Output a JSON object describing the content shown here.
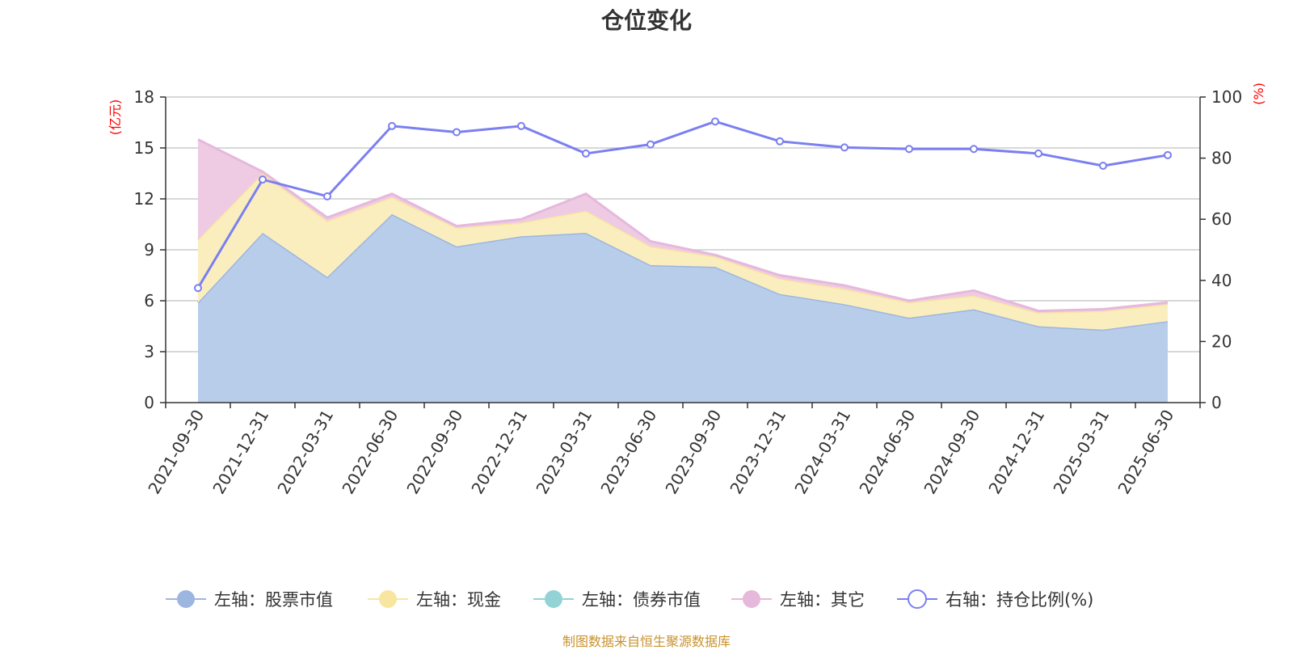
{
  "title": "仓位变化",
  "source": "制图数据来自恒生聚源数据库",
  "chart_data": {
    "type": "area",
    "left_axis": {
      "unit": "(亿元)",
      "range": [
        0,
        18
      ],
      "ticks": [
        "0",
        "3",
        "6",
        "9",
        "12",
        "15",
        "18"
      ]
    },
    "right_axis": {
      "unit": "(%)",
      "range": [
        0,
        100
      ],
      "ticks": [
        "0",
        "20",
        "40",
        "60",
        "80",
        "100"
      ]
    },
    "categories": [
      "2021-09-30",
      "2021-12-31",
      "2022-03-31",
      "2022-06-30",
      "2022-09-30",
      "2022-12-31",
      "2023-03-31",
      "2023-06-30",
      "2023-09-30",
      "2023-12-31",
      "2024-03-31",
      "2024-06-30",
      "2024-09-30",
      "2024-12-31",
      "2025-03-31",
      "2025-06-30"
    ],
    "series": [
      {
        "name": "左轴：股票市值",
        "axis": "left",
        "kind": "stacked-area",
        "color": "#9db6e0",
        "fill": "#b8cdea",
        "values": [
          5.9,
          10.0,
          7.4,
          11.1,
          9.2,
          9.8,
          10.0,
          8.1,
          8.0,
          6.4,
          5.8,
          5.0,
          5.5,
          4.5,
          4.3,
          4.8
        ]
      },
      {
        "name": "左轴：现金",
        "axis": "left",
        "kind": "stacked-area",
        "color": "#f8e6a0",
        "fill": "#faeebf",
        "values": [
          3.7,
          3.5,
          3.3,
          1.0,
          1.1,
          0.8,
          1.3,
          1.1,
          0.6,
          0.9,
          0.9,
          0.9,
          0.8,
          0.8,
          1.1,
          1.0
        ]
      },
      {
        "name": "左轴：债券市值",
        "axis": "left",
        "kind": "stacked-area",
        "color": "#93d3d6",
        "fill": "#93d3d6",
        "values": [
          0,
          0,
          0,
          0,
          0,
          0,
          0,
          0,
          0,
          0,
          0,
          0,
          0,
          0,
          0,
          0
        ]
      },
      {
        "name": "左轴：其它",
        "axis": "left",
        "kind": "stacked-area",
        "color": "#e6b8dc",
        "fill": "#eecbe3",
        "values": [
          5.9,
          0.1,
          0.2,
          0.2,
          0.1,
          0.2,
          1.0,
          0.3,
          0.1,
          0.2,
          0.2,
          0.1,
          0.3,
          0.1,
          0.1,
          0.1
        ]
      },
      {
        "name": "右轴：持仓比例(%)",
        "axis": "right",
        "kind": "line",
        "color": "#7b7ff0",
        "values": [
          37.5,
          73.0,
          67.5,
          90.5,
          88.5,
          90.5,
          81.5,
          84.5,
          92.0,
          85.5,
          83.5,
          83.0,
          83.0,
          81.5,
          77.5,
          81.0
        ]
      }
    ]
  }
}
